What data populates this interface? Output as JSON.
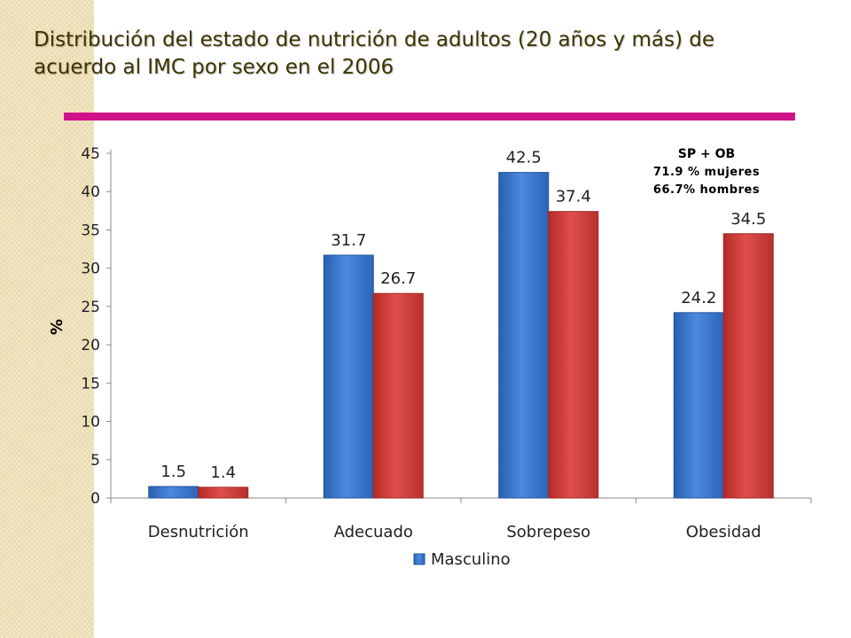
{
  "slide": {
    "title": "Distribución del estado de nutrición de adultos (20 años y más) de acuerdo al IMC por sexo en el 2006",
    "accent_color": "#d1138b"
  },
  "annotation": {
    "line1": "SP + OB",
    "line2": "71.9 % mujeres",
    "line3": "66.7% hombres"
  },
  "chart_data": {
    "type": "bar",
    "categories": [
      "Desnutrición",
      "Adecuado",
      "Sobrepeso",
      "Obesidad"
    ],
    "series": [
      {
        "name": "Masculino",
        "values": [
          1.5,
          31.7,
          42.5,
          24.2
        ],
        "color": "#3b78d0"
      },
      {
        "values": [
          1.4,
          26.7,
          37.4,
          34.5
        ],
        "color": "#d43a36"
      }
    ],
    "data_labels": [
      [
        "1.5",
        "31.7",
        "42.5",
        "24.2"
      ],
      [
        "1.4",
        "26.7",
        "37.4",
        "34.5"
      ]
    ],
    "ylabel": "%",
    "ylim": [
      0,
      45
    ],
    "yticks": [
      0,
      5,
      10,
      15,
      20,
      25,
      30,
      35,
      40,
      45
    ],
    "grid": false,
    "legend": {
      "position": "bottom",
      "entries": [
        "Masculino"
      ]
    }
  }
}
